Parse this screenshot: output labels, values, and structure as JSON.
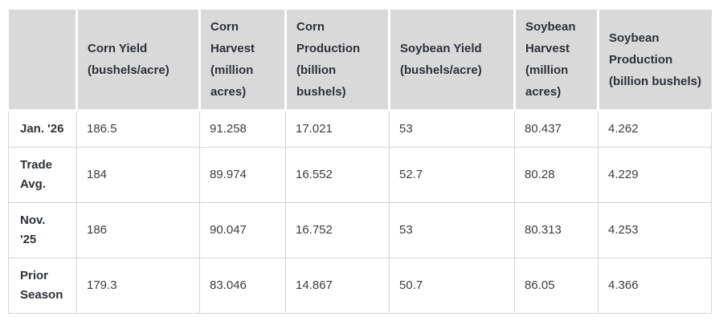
{
  "chart_data": {
    "type": "table",
    "columns": [
      "",
      "Corn Yield (bushels/acre)",
      "Corn Harvest (million acres)",
      "Corn Production (billion bushels)",
      "Soybean Yield (bushels/acre)",
      "Soybean Harvest (million acres)",
      "Soybean Production (billion bushels)"
    ],
    "rows": [
      {
        "label": "Jan. '26",
        "values": [
          "186.5",
          "91.258",
          "17.021",
          "53",
          "80.437",
          "4.262"
        ]
      },
      {
        "label": "Trade Avg.",
        "values": [
          "184",
          "89.974",
          "16.552",
          "52.7",
          "80.28",
          "4.229"
        ]
      },
      {
        "label": "Nov. '25",
        "values": [
          "186",
          "90.047",
          "16.752",
          "53",
          "80.313",
          "4.253"
        ]
      },
      {
        "label": "Prior Season",
        "values": [
          "179.3",
          "83.046",
          "14.867",
          "50.7",
          "86.05",
          "4.366"
        ]
      }
    ],
    "layout": {
      "legend": "none",
      "grid": "on",
      "header_position": "top"
    }
  },
  "colors": {
    "header_bg": "#d9d9d9",
    "header_text": "#2d3138",
    "body_text": "#3c3c3c",
    "grid_border": "#d5d5d5",
    "background": "#ffffff"
  }
}
